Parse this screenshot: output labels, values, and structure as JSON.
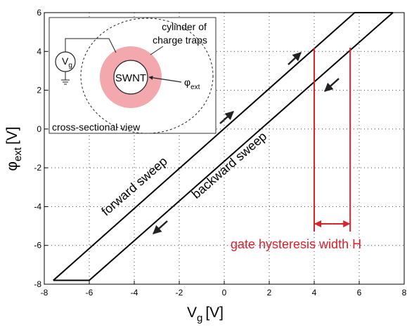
{
  "chart_data": {
    "type": "line",
    "x_label": {
      "symbol": "V",
      "subscript": "g",
      "unit": "[V]"
    },
    "y_label": {
      "symbol": "φ",
      "subscript": "ext",
      "unit": "[V]"
    },
    "series": [
      {
        "color": "#000000",
        "x": [
          -7.6,
          -7.4,
          5.8,
          7.5
        ],
        "values": [
          -7.8,
          -7.6,
          6,
          6
        ]
      },
      {
        "color": "#000000",
        "x": [
          7.5,
          7.3,
          -6,
          -7.6
        ],
        "values": [
          6,
          5.8,
          -7.8,
          -7.8
        ]
      }
    ],
    "xlim": [
      -8,
      8
    ],
    "xticks": [
      -8,
      -6,
      -4,
      -2,
      0,
      2,
      4,
      6,
      8
    ],
    "ylim": [
      -8,
      6
    ],
    "yticks": [
      -8,
      -6,
      -4,
      -2,
      0,
      2,
      4,
      6
    ],
    "grid": true,
    "annotations": {
      "forward": "forward sweep",
      "backward": "backward sweep",
      "hysteresis": "gate hysteresis width H"
    },
    "hysteresis_bounds": [
      4,
      5.6
    ],
    "hysteresis_color": "#e0202a",
    "inset": {
      "traps": [
        "cylinder of",
        "charge traps"
      ],
      "gate": {
        "symbol": "V",
        "subscript": "g"
      },
      "tube": "SWNT",
      "potential": {
        "symbol": "φ",
        "subscript": "ext"
      },
      "caption": "cross-sectional view"
    }
  }
}
